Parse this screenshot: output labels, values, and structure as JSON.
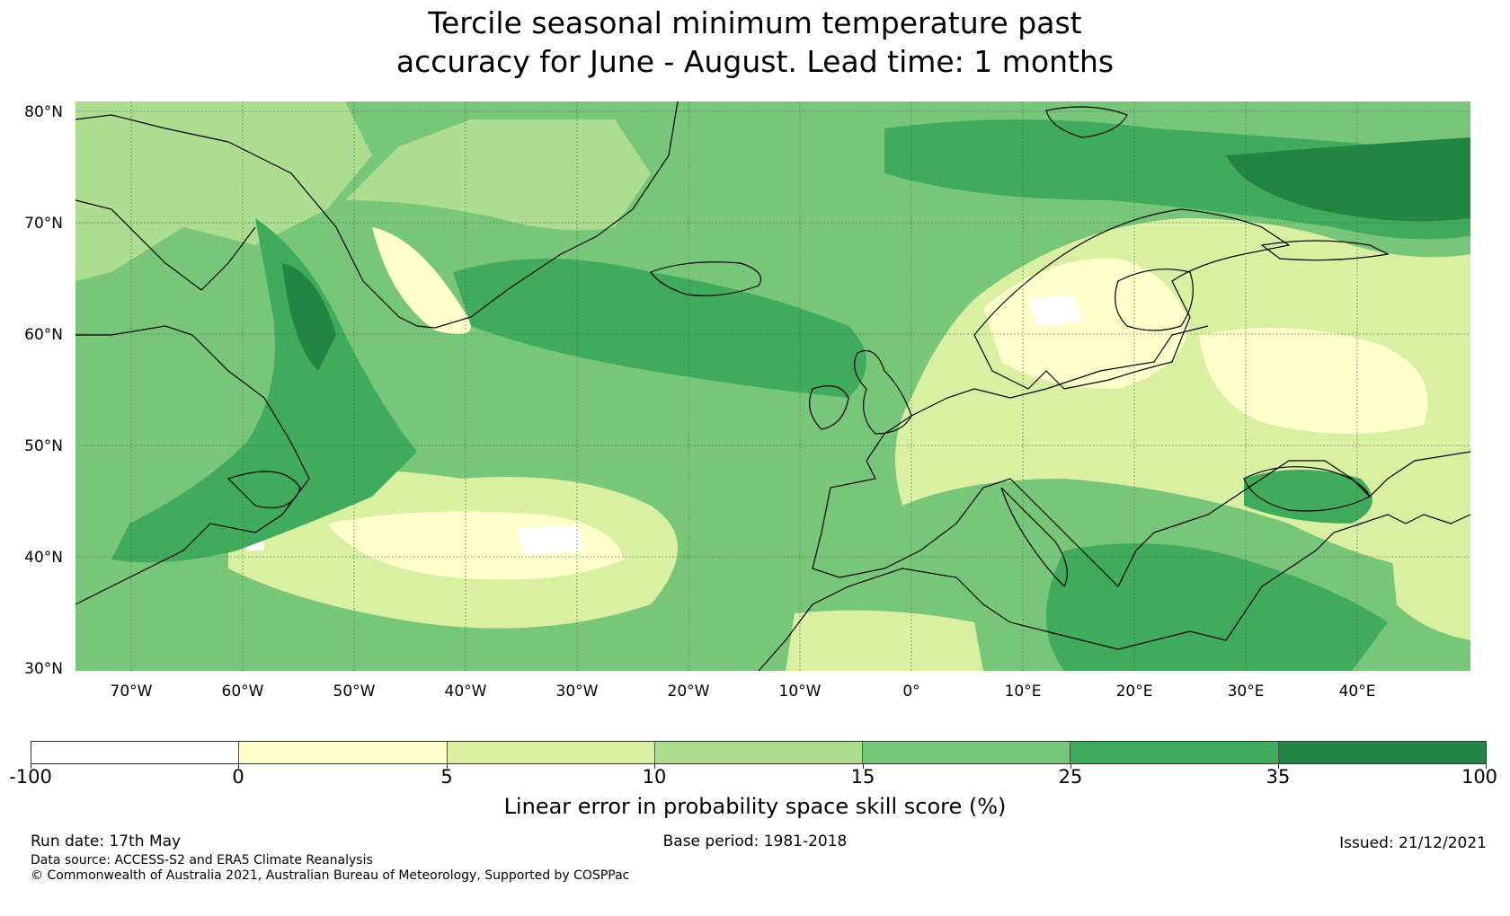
{
  "title": {
    "line1": "Tercile seasonal minimum temperature past",
    "line2": "accuracy for June - August. Lead time: 1 months"
  },
  "map": {
    "region": "North Atlantic and Europe",
    "extent_lon": [
      -75,
      50
    ],
    "extent_lat": [
      30,
      81
    ],
    "lat_labels": [
      "80°N",
      "70°N",
      "60°N",
      "50°N",
      "40°N",
      "30°N"
    ],
    "lon_labels": [
      "70°W",
      "60°W",
      "50°W",
      "40°W",
      "30°W",
      "20°W",
      "10°W",
      "0°",
      "10°E",
      "20°E",
      "30°E",
      "40°E"
    ]
  },
  "colorbar": {
    "ticks": [
      "-100",
      "0",
      "5",
      "10",
      "15",
      "25",
      "35",
      "100"
    ],
    "colors": [
      "#ffffff",
      "#ffffcc",
      "#d9f0a3",
      "#addd8e",
      "#78c679",
      "#41ab5d",
      "#238443"
    ],
    "label": "Linear error in probability space skill score (%)"
  },
  "footer": {
    "run_date": "Run date: 17th May",
    "base_period": "Base period: 1981-2018",
    "issued": "Issued: 21/12/2021",
    "data_source": "Data source: ACCESS-S2 and ERA5 Climate Reanalysis",
    "copyright": "© Commonwealth of Australia 2021, Australian Bureau of Meteorology, Supported by COSPPac"
  }
}
